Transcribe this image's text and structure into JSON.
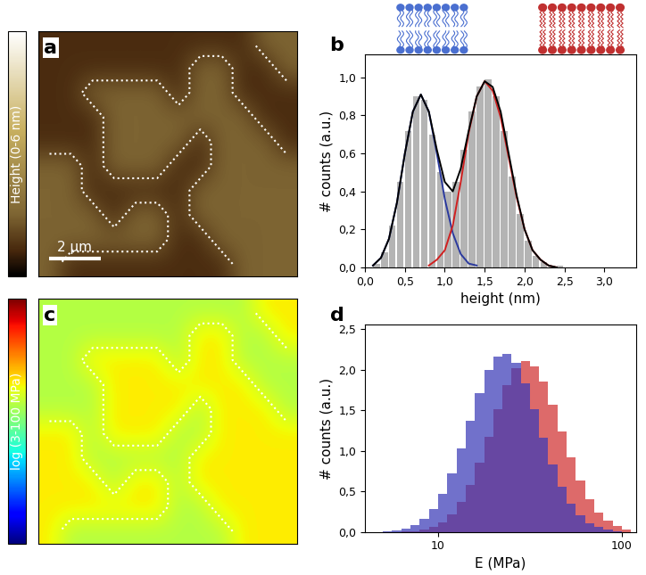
{
  "chart_data": [
    {
      "type": "heatmap",
      "title": "a",
      "colorbar_label": "Height (0-6 nm)",
      "colorbar_range": [
        0,
        6
      ],
      "extent": [
        0,
        10
      ],
      "scale_bar": {
        "length": 2,
        "label": "2 µm"
      },
      "tick_labels": false,
      "cells": [
        [
          0.7,
          0.7,
          0.7,
          0.7,
          0.7,
          0.7,
          0.7,
          0.7,
          0.7,
          0.7,
          1.5,
          1.5
        ],
        [
          0.7,
          0.7,
          0.7,
          0.7,
          0.7,
          0.7,
          0.7,
          1.5,
          1.5,
          0.7,
          0.7,
          1.5
        ],
        [
          0.7,
          0.7,
          1.5,
          1.5,
          1.5,
          1.5,
          0.7,
          1.5,
          1.5,
          0.7,
          0.7,
          0.7
        ],
        [
          0.7,
          0.7,
          0.7,
          1.5,
          1.5,
          1.5,
          1.5,
          1.5,
          1.5,
          1.5,
          0.7,
          0.7
        ],
        [
          0.7,
          0.7,
          0.7,
          1.5,
          1.5,
          1.5,
          1.5,
          0.7,
          1.5,
          1.5,
          1.5,
          0.7
        ],
        [
          1.5,
          1.5,
          0.7,
          1.5,
          1.5,
          1.5,
          0.7,
          0.7,
          1.5,
          1.5,
          1.5,
          1.5
        ],
        [
          1.5,
          1.5,
          0.7,
          0.7,
          0.7,
          0.7,
          0.7,
          1.5,
          1.5,
          1.5,
          1.5,
          1.5
        ],
        [
          1.5,
          1.5,
          1.5,
          0.7,
          1.5,
          1.5,
          0.7,
          1.5,
          1.5,
          1.5,
          1.5,
          1.5
        ],
        [
          1.5,
          1.5,
          1.5,
          1.5,
          1.5,
          1.5,
          0.7,
          0.7,
          1.5,
          1.5,
          1.5,
          1.5
        ],
        [
          1.5,
          0.7,
          0.7,
          0.7,
          0.7,
          0.7,
          0.7,
          0.7,
          0.7,
          1.5,
          1.5,
          1.5
        ]
      ]
    },
    {
      "type": "histogram",
      "title": "b",
      "x_label": "height (nm)",
      "y_label": "# counts (a.u.)",
      "color": "#b4b4b4",
      "bins": [
        0.0,
        0.1,
        0.2,
        0.3,
        0.4,
        0.5,
        0.6,
        0.7,
        0.8,
        0.9,
        1.0,
        1.1,
        1.2,
        1.3,
        1.4,
        1.5,
        1.6,
        1.7,
        1.8,
        1.9,
        2.0,
        2.1,
        2.2,
        2.3,
        2.4,
        2.5,
        2.6,
        2.7,
        2.8,
        2.9,
        3.0
      ],
      "counts": [
        0.0,
        0.02,
        0.08,
        0.22,
        0.45,
        0.72,
        0.9,
        0.88,
        0.7,
        0.5,
        0.4,
        0.45,
        0.62,
        0.82,
        0.95,
        0.99,
        0.9,
        0.72,
        0.48,
        0.28,
        0.14,
        0.06,
        0.03,
        0.01,
        0.01,
        0.0,
        0.0,
        0.0,
        0.0,
        0.0
      ],
      "series": [
        {
          "type": "line",
          "color": "#2b3a9e",
          "x": [
            0.1,
            0.2,
            0.3,
            0.4,
            0.5,
            0.6,
            0.7,
            0.8,
            0.9,
            1.0,
            1.1,
            1.2,
            1.3,
            1.4
          ],
          "values": [
            0.01,
            0.05,
            0.15,
            0.34,
            0.6,
            0.82,
            0.91,
            0.82,
            0.6,
            0.36,
            0.18,
            0.07,
            0.02,
            0.01
          ]
        },
        {
          "type": "line",
          "color": "#d02020",
          "x": [
            0.8,
            0.9,
            1.0,
            1.1,
            1.2,
            1.3,
            1.4,
            1.5,
            1.6,
            1.7,
            1.8,
            1.9,
            2.0,
            2.1,
            2.2,
            2.3,
            2.4
          ],
          "values": [
            0.01,
            0.04,
            0.09,
            0.22,
            0.45,
            0.71,
            0.9,
            0.98,
            0.93,
            0.79,
            0.58,
            0.37,
            0.2,
            0.09,
            0.04,
            0.01,
            0.0
          ]
        },
        {
          "type": "line",
          "color": "#000000",
          "x": [
            0.1,
            0.2,
            0.3,
            0.4,
            0.5,
            0.6,
            0.7,
            0.8,
            0.9,
            1.0,
            1.1,
            1.2,
            1.3,
            1.4,
            1.5,
            1.6,
            1.7,
            1.8,
            1.9,
            2.0,
            2.1,
            2.2,
            2.3,
            2.4
          ],
          "values": [
            0.01,
            0.05,
            0.15,
            0.34,
            0.6,
            0.82,
            0.91,
            0.82,
            0.62,
            0.45,
            0.4,
            0.52,
            0.72,
            0.9,
            0.98,
            0.95,
            0.82,
            0.6,
            0.38,
            0.2,
            0.09,
            0.04,
            0.01,
            0.0
          ]
        }
      ],
      "xlim": [
        0,
        3.4
      ],
      "ylim": [
        0,
        1.12
      ],
      "xticks": [
        {
          "value": 0,
          "label": "0,0"
        },
        {
          "value": 0.5,
          "label": "0,5"
        },
        {
          "value": 1,
          "label": "1,0"
        },
        {
          "value": 1.5,
          "label": "1,5"
        },
        {
          "value": 2,
          "label": "2,0"
        },
        {
          "value": 2.5,
          "label": "2,5"
        },
        {
          "value": 3,
          "label": "3,0"
        }
      ],
      "yticks": [
        {
          "value": 0,
          "label": "0,0"
        },
        {
          "value": 0.2,
          "label": "0,2"
        },
        {
          "value": 0.4,
          "label": "0,4"
        },
        {
          "value": 0.6,
          "label": "0,6"
        },
        {
          "value": 0.8,
          "label": "0,8"
        },
        {
          "value": 1,
          "label": "1,0"
        }
      ]
    },
    {
      "type": "heatmap",
      "title": "c",
      "colorbar_label": "log (3-100 MPa)",
      "colorbar_range": [
        3,
        100
      ],
      "log": true,
      "extent": [
        0,
        10
      ],
      "tick_labels": false,
      "cells": [
        [
          22,
          22,
          22,
          22,
          22,
          22,
          22,
          22,
          22,
          22,
          30,
          30
        ],
        [
          22,
          22,
          22,
          22,
          22,
          22,
          22,
          30,
          30,
          22,
          22,
          30
        ],
        [
          22,
          22,
          30,
          30,
          30,
          30,
          22,
          30,
          30,
          22,
          22,
          22
        ],
        [
          22,
          22,
          22,
          30,
          30,
          30,
          30,
          30,
          30,
          30,
          22,
          22
        ],
        [
          22,
          22,
          22,
          30,
          30,
          30,
          30,
          22,
          30,
          30,
          30,
          22
        ],
        [
          30,
          30,
          22,
          30,
          30,
          30,
          22,
          22,
          30,
          30,
          30,
          30
        ],
        [
          30,
          30,
          22,
          22,
          22,
          22,
          22,
          30,
          30,
          30,
          30,
          30
        ],
        [
          30,
          30,
          30,
          22,
          30,
          30,
          22,
          30,
          30,
          30,
          30,
          30
        ],
        [
          30,
          30,
          30,
          30,
          30,
          30,
          22,
          22,
          30,
          30,
          30,
          30
        ],
        [
          30,
          22,
          22,
          22,
          22,
          22,
          22,
          22,
          22,
          30,
          30,
          30
        ]
      ]
    },
    {
      "type": "histogram",
      "title": "d",
      "x_label": "E (MPa)",
      "y_label": "# counts (a.u.)",
      "log": "x",
      "bins": [
        5.01,
        5.62,
        6.31,
        7.08,
        7.94,
        8.91,
        10.0,
        11.2,
        12.6,
        14.1,
        15.8,
        17.8,
        20.0,
        22.4,
        25.1,
        28.2,
        31.6,
        35.5,
        39.8,
        44.7,
        50.1,
        56.2,
        63.1,
        70.8,
        79.4,
        89.1,
        100,
        112
      ],
      "series": [
        {
          "color": "#d03030",
          "counts": [
            0.0,
            0.0,
            0.01,
            0.01,
            0.03,
            0.06,
            0.12,
            0.22,
            0.37,
            0.58,
            0.85,
            1.17,
            1.51,
            1.81,
            2.02,
            2.1,
            2.04,
            1.85,
            1.57,
            1.24,
            0.92,
            0.63,
            0.4,
            0.24,
            0.14,
            0.07,
            0.03
          ]
        },
        {
          "color": "#3a3ab8",
          "counts": [
            0.01,
            0.02,
            0.04,
            0.08,
            0.16,
            0.28,
            0.47,
            0.72,
            1.03,
            1.37,
            1.71,
            1.99,
            2.16,
            2.19,
            2.08,
            1.83,
            1.51,
            1.16,
            0.83,
            0.56,
            0.35,
            0.2,
            0.11,
            0.06,
            0.03,
            0.01,
            0.0
          ]
        }
      ],
      "xlim": [
        4,
        120
      ],
      "ylim": [
        0,
        2.55
      ],
      "xticks": [
        10,
        100
      ],
      "yticks": [
        {
          "value": 0,
          "label": "0,0"
        },
        {
          "value": 0.5,
          "label": "0,5"
        },
        {
          "value": 1,
          "label": "1,0"
        },
        {
          "value": 1.5,
          "label": "1,5"
        },
        {
          "value": 2,
          "label": "2,0"
        },
        {
          "value": 2.5,
          "label": "2,5"
        }
      ]
    }
  ]
}
